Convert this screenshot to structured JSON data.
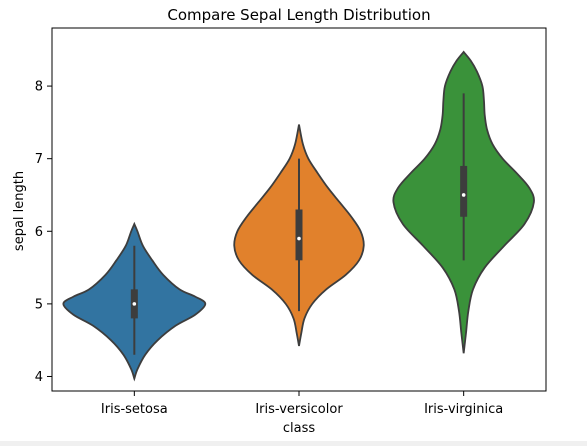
{
  "chart_data": {
    "type": "violin",
    "title": "Compare Sepal Length Distribution",
    "xlabel": "class",
    "ylabel": "sepal length",
    "categories": [
      "Iris-setosa",
      "Iris-versicolor",
      "Iris-virginica"
    ],
    "ylim": [
      3.8,
      8.8
    ],
    "yticks": [
      4,
      5,
      6,
      7,
      8
    ],
    "grid": false,
    "colors": [
      "#3274a1",
      "#e1812c",
      "#3a923a"
    ],
    "violins": [
      {
        "category": "Iris-setosa",
        "kde_range": [
          3.97,
          6.1
        ],
        "profile": [
          [
            3.97,
            0.0
          ],
          [
            4.1,
            0.04
          ],
          [
            4.3,
            0.14
          ],
          [
            4.5,
            0.3
          ],
          [
            4.7,
            0.53
          ],
          [
            4.85,
            0.78
          ],
          [
            5.0,
            0.91
          ],
          [
            5.1,
            0.78
          ],
          [
            5.2,
            0.58
          ],
          [
            5.4,
            0.37
          ],
          [
            5.6,
            0.23
          ],
          [
            5.8,
            0.11
          ],
          [
            6.0,
            0.04
          ],
          [
            6.1,
            0.0
          ]
        ],
        "whisker": [
          4.3,
          5.8
        ],
        "q1": 4.8,
        "median": 5.0,
        "q3": 5.2
      },
      {
        "category": "Iris-versicolor",
        "kde_range": [
          4.42,
          7.47
        ],
        "profile": [
          [
            4.42,
            0.0
          ],
          [
            4.6,
            0.03
          ],
          [
            4.8,
            0.07
          ],
          [
            5.0,
            0.17
          ],
          [
            5.2,
            0.35
          ],
          [
            5.4,
            0.6
          ],
          [
            5.6,
            0.77
          ],
          [
            5.8,
            0.83
          ],
          [
            6.0,
            0.79
          ],
          [
            6.2,
            0.67
          ],
          [
            6.4,
            0.52
          ],
          [
            6.6,
            0.37
          ],
          [
            6.8,
            0.24
          ],
          [
            7.0,
            0.12
          ],
          [
            7.2,
            0.05
          ],
          [
            7.47,
            0.0
          ]
        ],
        "whisker": [
          4.9,
          7.0
        ],
        "q1": 5.6,
        "median": 5.9,
        "q3": 6.3
      },
      {
        "category": "Iris-virginica",
        "kde_range": [
          4.32,
          8.47
        ],
        "profile": [
          [
            4.32,
            0.0
          ],
          [
            4.6,
            0.03
          ],
          [
            4.9,
            0.06
          ],
          [
            5.2,
            0.12
          ],
          [
            5.5,
            0.27
          ],
          [
            5.8,
            0.52
          ],
          [
            6.1,
            0.78
          ],
          [
            6.4,
            0.9
          ],
          [
            6.6,
            0.84
          ],
          [
            6.8,
            0.68
          ],
          [
            7.0,
            0.5
          ],
          [
            7.2,
            0.37
          ],
          [
            7.4,
            0.3
          ],
          [
            7.6,
            0.27
          ],
          [
            7.8,
            0.26
          ],
          [
            8.0,
            0.24
          ],
          [
            8.2,
            0.17
          ],
          [
            8.35,
            0.09
          ],
          [
            8.47,
            0.0
          ]
        ],
        "whisker": [
          5.6,
          7.9
        ],
        "q1": 6.2,
        "median": 6.5,
        "q3": 6.9
      }
    ]
  }
}
